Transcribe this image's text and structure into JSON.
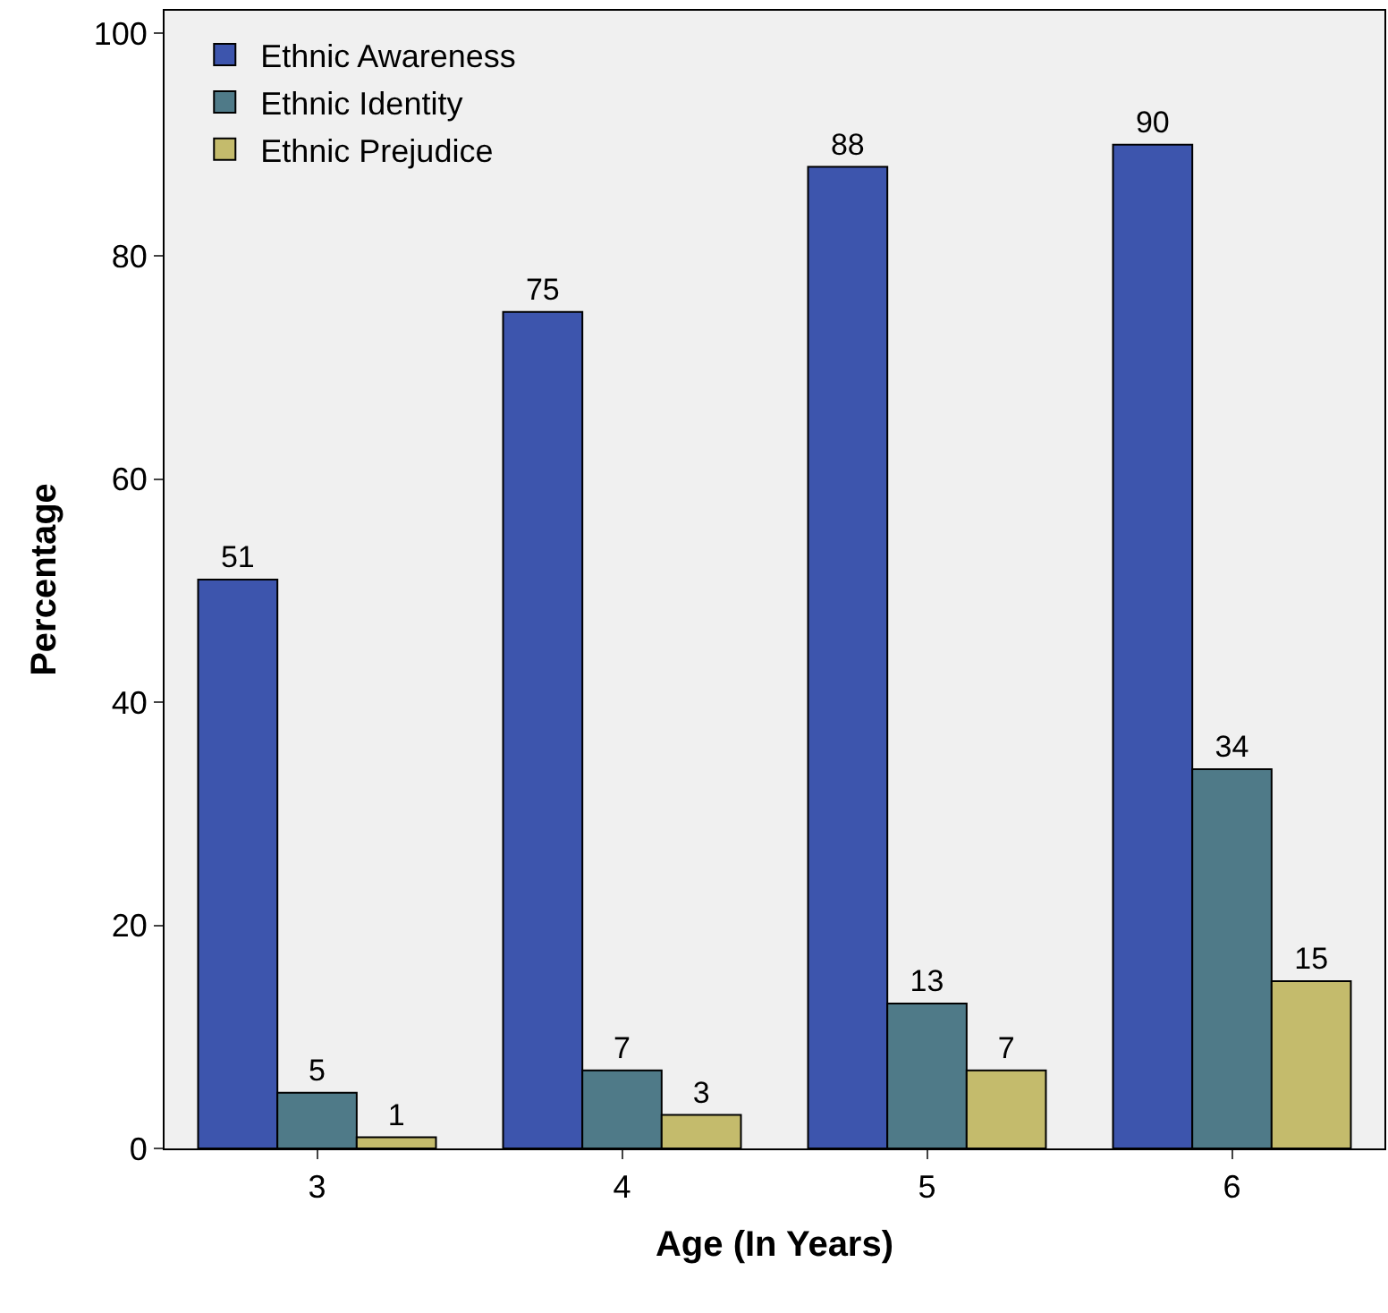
{
  "chart_data": {
    "type": "bar",
    "xlabel": "Age (In Years)",
    "ylabel": "Percentage",
    "categories": [
      "3",
      "4",
      "5",
      "6"
    ],
    "series": [
      {
        "name": "Ethnic Awareness",
        "color": "#3d55ad",
        "values": [
          51,
          75,
          88,
          90
        ]
      },
      {
        "name": "Ethnic Identity",
        "color": "#4f7a88",
        "values": [
          5,
          7,
          13,
          34
        ]
      },
      {
        "name": "Ethnic Prejudice",
        "color": "#c4bb6c",
        "values": [
          1,
          3,
          7,
          15
        ]
      }
    ],
    "ylim": [
      0,
      102
    ],
    "yticks": [
      0,
      20,
      40,
      60,
      80,
      100
    ],
    "grid": false,
    "legend": "top left",
    "data_labels": true
  }
}
